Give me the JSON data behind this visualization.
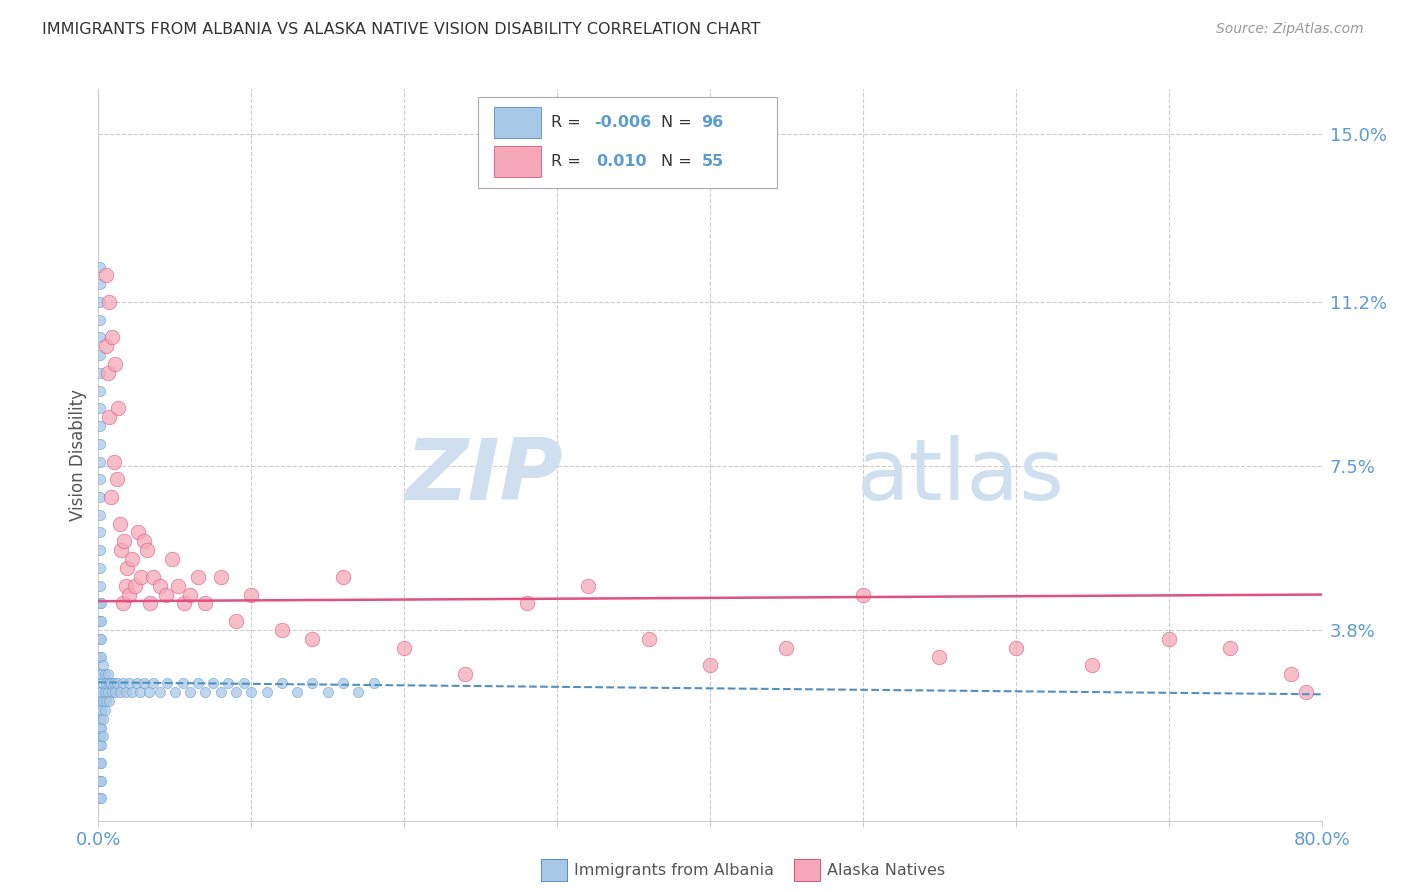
{
  "title": "IMMIGRANTS FROM ALBANIA VS ALASKA NATIVE VISION DISABILITY CORRELATION CHART",
  "source": "Source: ZipAtlas.com",
  "ylabel": "Vision Disability",
  "xmin": 0.0,
  "xmax": 0.8,
  "ymin": -0.005,
  "ymax": 0.16,
  "yticks": [
    0.038,
    0.075,
    0.112,
    0.15
  ],
  "ytick_labels": [
    "3.8%",
    "7.5%",
    "11.2%",
    "15.0%"
  ],
  "xtick_positions": [
    0.0,
    0.1,
    0.2,
    0.3,
    0.4,
    0.5,
    0.6,
    0.7,
    0.8
  ],
  "xtick_labels": [
    "0.0%",
    "",
    "",
    "",
    "",
    "",
    "",
    "",
    "80.0%"
  ],
  "legend_r_blue": "-0.006",
  "legend_n_blue": "96",
  "legend_r_pink": "0.010",
  "legend_n_pink": "55",
  "trend_blue_start_x": 0.0,
  "trend_blue_start_y": 0.0262,
  "trend_blue_end_x": 0.8,
  "trend_blue_end_y": 0.0235,
  "trend_pink_start_x": 0.0,
  "trend_pink_start_y": 0.0445,
  "trend_pink_end_x": 0.8,
  "trend_pink_end_y": 0.046,
  "blue_scatter_x": [
    0.001,
    0.001,
    0.001,
    0.001,
    0.001,
    0.001,
    0.001,
    0.001,
    0.001,
    0.001,
    0.001,
    0.001,
    0.001,
    0.001,
    0.001,
    0.001,
    0.001,
    0.001,
    0.001,
    0.001,
    0.001,
    0.001,
    0.001,
    0.001,
    0.001,
    0.001,
    0.001,
    0.001,
    0.001,
    0.001,
    0.001,
    0.001,
    0.001,
    0.001,
    0.002,
    0.002,
    0.002,
    0.002,
    0.002,
    0.002,
    0.002,
    0.002,
    0.002,
    0.002,
    0.002,
    0.002,
    0.003,
    0.003,
    0.003,
    0.003,
    0.003,
    0.004,
    0.004,
    0.004,
    0.005,
    0.005,
    0.006,
    0.006,
    0.007,
    0.007,
    0.008,
    0.009,
    0.01,
    0.011,
    0.012,
    0.014,
    0.016,
    0.018,
    0.02,
    0.022,
    0.025,
    0.027,
    0.03,
    0.033,
    0.036,
    0.04,
    0.045,
    0.05,
    0.055,
    0.06,
    0.065,
    0.07,
    0.075,
    0.08,
    0.085,
    0.09,
    0.095,
    0.1,
    0.11,
    0.12,
    0.13,
    0.14,
    0.15,
    0.16,
    0.17,
    0.18
  ],
  "blue_scatter_y": [
    0.068,
    0.064,
    0.06,
    0.056,
    0.052,
    0.048,
    0.044,
    0.04,
    0.036,
    0.032,
    0.028,
    0.024,
    0.02,
    0.016,
    0.012,
    0.008,
    0.004,
    0.0,
    0.072,
    0.076,
    0.08,
    0.084,
    0.088,
    0.092,
    0.096,
    0.1,
    0.104,
    0.108,
    0.112,
    0.116,
    0.12,
    0.014,
    0.018,
    0.022,
    0.044,
    0.04,
    0.036,
    0.032,
    0.028,
    0.024,
    0.02,
    0.016,
    0.012,
    0.008,
    0.004,
    0.0,
    0.03,
    0.026,
    0.022,
    0.018,
    0.014,
    0.028,
    0.024,
    0.02,
    0.026,
    0.022,
    0.028,
    0.024,
    0.026,
    0.022,
    0.026,
    0.024,
    0.026,
    0.024,
    0.026,
    0.024,
    0.026,
    0.024,
    0.026,
    0.024,
    0.026,
    0.024,
    0.026,
    0.024,
    0.026,
    0.024,
    0.026,
    0.024,
    0.026,
    0.024,
    0.026,
    0.024,
    0.026,
    0.024,
    0.026,
    0.024,
    0.026,
    0.024,
    0.024,
    0.026,
    0.024,
    0.026,
    0.024,
    0.026,
    0.024,
    0.026
  ],
  "pink_scatter_x": [
    0.005,
    0.005,
    0.006,
    0.007,
    0.007,
    0.008,
    0.009,
    0.01,
    0.011,
    0.012,
    0.013,
    0.014,
    0.015,
    0.016,
    0.017,
    0.018,
    0.019,
    0.02,
    0.022,
    0.024,
    0.026,
    0.028,
    0.03,
    0.032,
    0.034,
    0.036,
    0.04,
    0.044,
    0.048,
    0.052,
    0.056,
    0.06,
    0.065,
    0.07,
    0.08,
    0.09,
    0.1,
    0.12,
    0.14,
    0.16,
    0.2,
    0.24,
    0.28,
    0.32,
    0.36,
    0.4,
    0.45,
    0.5,
    0.55,
    0.6,
    0.65,
    0.7,
    0.74,
    0.78,
    0.79
  ],
  "pink_scatter_y": [
    0.118,
    0.102,
    0.096,
    0.112,
    0.086,
    0.068,
    0.104,
    0.076,
    0.098,
    0.072,
    0.088,
    0.062,
    0.056,
    0.044,
    0.058,
    0.048,
    0.052,
    0.046,
    0.054,
    0.048,
    0.06,
    0.05,
    0.058,
    0.056,
    0.044,
    0.05,
    0.048,
    0.046,
    0.054,
    0.048,
    0.044,
    0.046,
    0.05,
    0.044,
    0.05,
    0.04,
    0.046,
    0.038,
    0.036,
    0.05,
    0.034,
    0.028,
    0.044,
    0.048,
    0.036,
    0.03,
    0.034,
    0.046,
    0.032,
    0.034,
    0.03,
    0.036,
    0.034,
    0.028,
    0.024
  ],
  "blue_color": "#a8c8e8",
  "pink_color": "#f4a8b8",
  "trend_blue_color": "#5090c0",
  "trend_pink_color": "#e05080",
  "grid_color": "#cccccc",
  "axis_label_color": "#5b9bd5",
  "title_color": "#333333",
  "watermark_zip_color": "#d0dff0",
  "watermark_atlas_color": "#d0dff0",
  "background_color": "#ffffff",
  "legend_text_color_blue": "#5b9bd5",
  "legend_text_color_pink": "#e05080",
  "legend_n_color": "#333333"
}
